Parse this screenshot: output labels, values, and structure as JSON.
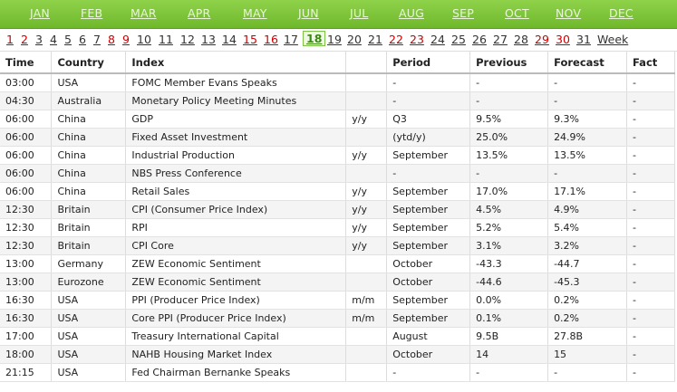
{
  "months": [
    "JAN",
    "FEB",
    "MAR",
    "APR",
    "MAY",
    "JUN",
    "JUL",
    "AUG",
    "SEP",
    "OCT",
    "NOV",
    "DEC"
  ],
  "days": [
    {
      "label": "1",
      "red": true
    },
    {
      "label": "2",
      "red": true
    },
    {
      "label": "3"
    },
    {
      "label": "4"
    },
    {
      "label": "5"
    },
    {
      "label": "6"
    },
    {
      "label": "7"
    },
    {
      "label": "8",
      "red": true
    },
    {
      "label": "9",
      "red": true
    },
    {
      "label": "10"
    },
    {
      "label": "11"
    },
    {
      "label": "12"
    },
    {
      "label": "13"
    },
    {
      "label": "14"
    },
    {
      "label": "15",
      "red": true
    },
    {
      "label": "16",
      "red": true
    },
    {
      "label": "17"
    },
    {
      "label": "18",
      "current": true
    },
    {
      "label": "19"
    },
    {
      "label": "20"
    },
    {
      "label": "21"
    },
    {
      "label": "22",
      "red": true
    },
    {
      "label": "23",
      "red": true
    },
    {
      "label": "24"
    },
    {
      "label": "25"
    },
    {
      "label": "26"
    },
    {
      "label": "27"
    },
    {
      "label": "28"
    },
    {
      "label": "29",
      "red": true
    },
    {
      "label": "30",
      "red": true
    },
    {
      "label": "31"
    },
    {
      "label": "Week"
    }
  ],
  "headers": [
    "Time",
    "Country",
    "Index",
    "",
    "Period",
    "Previous",
    "Forecast",
    "Fact"
  ],
  "rows": [
    [
      "03:00",
      "USA",
      "FOMC Member Evans Speaks",
      "",
      "-",
      "-",
      "-",
      "-"
    ],
    [
      "04:30",
      "Australia",
      "Monetary Policy Meeting Minutes",
      "",
      "-",
      "-",
      "-",
      "-"
    ],
    [
      "06:00",
      "China",
      "GDP",
      "y/y",
      "Q3",
      "9.5%",
      "9.3%",
      "-"
    ],
    [
      "06:00",
      "China",
      "Fixed Asset Investment",
      "",
      "(ytd/y)",
      "25.0%",
      "24.9%",
      "-"
    ],
    [
      "06:00",
      "China",
      "Industrial Production",
      "y/y",
      "September",
      "13.5%",
      "13.5%",
      "-"
    ],
    [
      "06:00",
      "China",
      "NBS Press Conference",
      "",
      "-",
      "-",
      "-",
      "-"
    ],
    [
      "06:00",
      "China",
      "Retail Sales",
      "y/y",
      "September",
      "17.0%",
      "17.1%",
      "-"
    ],
    [
      "12:30",
      "Britain",
      "CPI (Consumer Price Index)",
      "y/y",
      "September",
      "4.5%",
      "4.9%",
      "-"
    ],
    [
      "12:30",
      "Britain",
      "RPI",
      "y/y",
      "September",
      "5.2%",
      "5.4%",
      "-"
    ],
    [
      "12:30",
      "Britain",
      "CPI Core",
      "y/y",
      "September",
      "3.1%",
      "3.2%",
      "-"
    ],
    [
      "13:00",
      "Germany",
      "ZEW Economic Sentiment",
      "",
      "October",
      "-43.3",
      "-44.7",
      "-"
    ],
    [
      "13:00",
      "Eurozone",
      "ZEW Economic Sentiment",
      "",
      "October",
      "-44.6",
      "-45.3",
      "-"
    ],
    [
      "16:30",
      "USA",
      "PPI (Producer Price Index)",
      "m/m",
      "September",
      "0.0%",
      "0.2%",
      "-"
    ],
    [
      "16:30",
      "USA",
      "Core PPI (Producer Price Index)",
      "m/m",
      "September",
      "0.1%",
      "0.2%",
      "-"
    ],
    [
      "17:00",
      "USA",
      "Treasury International Capital",
      "",
      "August",
      "9.5B",
      "27.8B",
      "-"
    ],
    [
      "18:00",
      "USA",
      "NAHB Housing Market Index",
      "",
      "October",
      "14",
      "15",
      "-"
    ],
    [
      "21:15",
      "USA",
      "Fed Chairman Bernanke Speaks",
      "",
      "-",
      "-",
      "-",
      "-"
    ]
  ]
}
